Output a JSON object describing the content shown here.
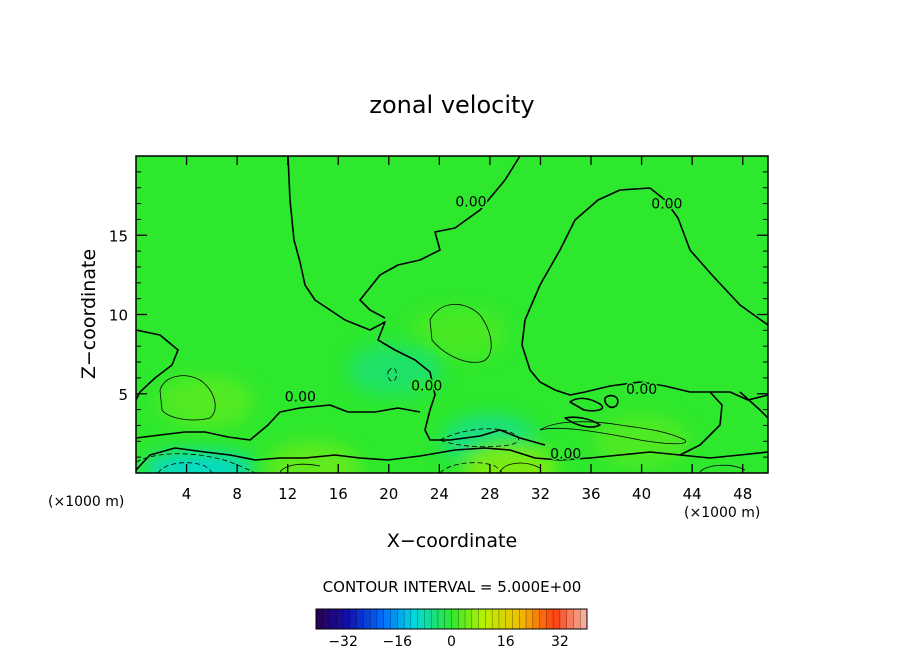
{
  "chart_data": {
    "type": "heatmap",
    "title": "zonal velocity",
    "xlabel": "X−coordinate",
    "ylabel": "Z−coordinate",
    "x_unit": "(×1000 m)",
    "z_unit": "(×1000 m)",
    "xlim": [
      0,
      50
    ],
    "ylim": [
      0,
      20
    ],
    "x_ticks": [
      "4",
      "8",
      "12",
      "16",
      "20",
      "24",
      "28",
      "32",
      "36",
      "40",
      "44",
      "48"
    ],
    "y_ticks": [
      "5",
      "10",
      "15"
    ],
    "contour_interval_text": "CONTOUR INTERVAL = 5.000E+00",
    "zero_contour_label": "0.00",
    "zero_contour_labels": [
      {
        "x": 26.5,
        "z": 16.8
      },
      {
        "x": 42.0,
        "z": 16.7
      },
      {
        "x": 13.0,
        "z": 4.5
      },
      {
        "x": 23.0,
        "z": 5.2
      },
      {
        "x": 40.0,
        "z": 5.0
      },
      {
        "x": 34.0,
        "z": 0.9
      }
    ],
    "colorbar": {
      "min": -40,
      "max": 40,
      "tick_values": [
        -32,
        -16,
        0,
        16,
        32
      ],
      "tick_labels": [
        "−32",
        "−16",
        "0",
        "16",
        "32"
      ]
    },
    "features": [
      {
        "x": 5.5,
        "z": 4.5,
        "value": 3
      },
      {
        "x": 25.5,
        "z": 8.8,
        "value": 2
      },
      {
        "x": 40.0,
        "z": 2.0,
        "value": 2.5
      },
      {
        "x": 20.5,
        "z": 6.5,
        "value": -4
      },
      {
        "x": 5.0,
        "z": 0.3,
        "value": -11
      },
      {
        "x": 28.0,
        "z": 2.0,
        "value": -6
      },
      {
        "x": 29.5,
        "z": 0.3,
        "value": 6
      },
      {
        "x": 14.0,
        "z": 0.3,
        "value": 4
      }
    ]
  }
}
